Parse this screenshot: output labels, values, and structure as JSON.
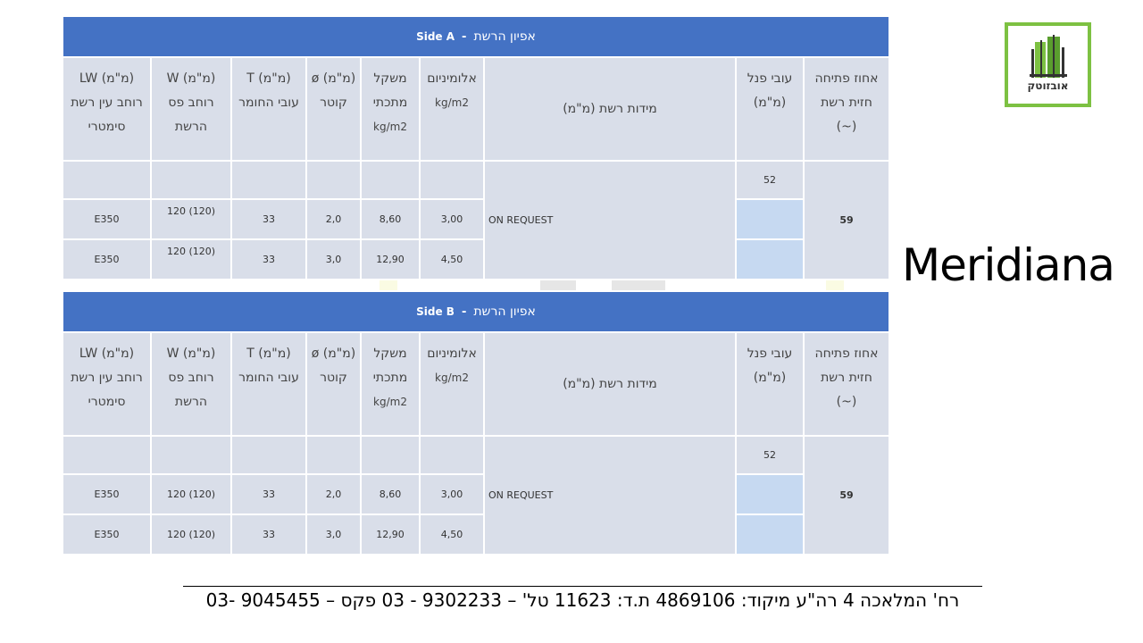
{
  "company_logo_text": "אובזוטק",
  "brand_name": "Meridiana",
  "tables": [
    {
      "side": "Side A",
      "title_heb": "אפיון הרשת",
      "headers": {
        "opening": [
          "אחוז פתיחה",
          "חזית רשת",
          "(~)"
        ],
        "panel": [
          "עובי פנל",
          "(מ\"מ)"
        ],
        "mesh_dims": "מידות רשת (מ\"מ)",
        "aluminum": [
          "אלומיניום",
          "kg/m2"
        ],
        "weight": [
          "משקל",
          "מתכתי",
          "kg/m2"
        ],
        "diameter": [
          "ø (מ\"מ)",
          "קוטר"
        ],
        "thickness": [
          "T (מ\"מ)",
          "עובי החומר"
        ],
        "strip": [
          "W (מ\"מ)",
          "רוחב פס",
          "הרשת"
        ],
        "lw": [
          "LW (מ\"מ)",
          "רוחב עין רשת",
          "סימטרי"
        ]
      },
      "opening_value": "59",
      "panel_value": "52",
      "mesh_value": "ON REQUEST",
      "rows": [
        {
          "aluminum": "3,00",
          "weight": "8,60",
          "diameter": "2,0",
          "thickness": "33",
          "strip": "120 (120)",
          "lw": "E350"
        },
        {
          "aluminum": "4,50",
          "weight": "12,90",
          "diameter": "3,0",
          "thickness": "33",
          "strip": "120 (120)",
          "lw": "E350"
        }
      ]
    },
    {
      "side": "Side B",
      "title_heb": "אפיון הרשת",
      "headers": {
        "opening": [
          "אחוז פתיחה",
          "חזית רשת",
          "(~)"
        ],
        "panel": [
          "עובי פנל",
          "(מ\"מ)"
        ],
        "mesh_dims": "מידות רשת (מ\"מ)",
        "aluminum": [
          "אלומיניום",
          "kg/m2"
        ],
        "weight": [
          "משקל",
          "מתכתי",
          "kg/m2"
        ],
        "diameter": [
          "ø (מ\"מ)",
          "קוטר"
        ],
        "thickness": [
          "T (מ\"מ)",
          "עובי החומר"
        ],
        "strip": [
          "W (מ\"מ)",
          "רוחב פס",
          "הרשת"
        ],
        "lw": [
          "LW (מ\"מ)",
          "רוחב עין רשת",
          "סימטרי"
        ]
      },
      "opening_value": "59",
      "panel_value": "52",
      "mesh_value": "ON REQUEST",
      "rows": [
        {
          "aluminum": "3,00",
          "weight": "8,60",
          "diameter": "2,0",
          "thickness": "33",
          "strip": "120 (120)",
          "lw": "E350"
        },
        {
          "aluminum": "4,50",
          "weight": "12,90",
          "diameter": "3,0",
          "thickness": "33",
          "strip": "120 (120)",
          "lw": "E350"
        }
      ]
    }
  ],
  "footer": "רח' המלאכה 4 רה\"ע מיקוד: 4869106 ת.ד: 11623 טל' – 9302233 - 03    פקס – 9045455 -03",
  "colors": {
    "header_blue": "#4472c4",
    "cell_grey": "#d9dee9",
    "cell_blue": "#c6d9f1",
    "logo_green": "#7dc142"
  }
}
